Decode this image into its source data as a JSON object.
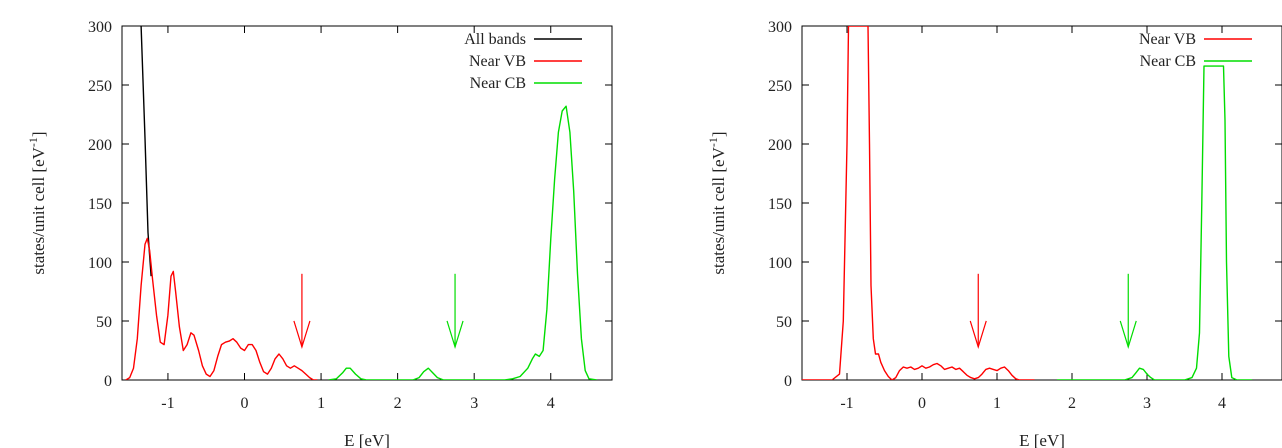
{
  "chart_data": [
    {
      "type": "line",
      "xlabel": "E [eV]",
      "ylabel_main": "states/unit cell [eV",
      "ylabel_sup": "-1",
      "ylabel_end": "]",
      "xlim": [
        -1.6,
        4.8
      ],
      "ylim": [
        0,
        300
      ],
      "xticks": [
        -1,
        0,
        1,
        2,
        3,
        4
      ],
      "yticks": [
        0,
        50,
        100,
        150,
        200,
        250,
        300
      ],
      "grid": false,
      "legend_position": "top-right",
      "series": [
        {
          "name": "All bands",
          "color": "#000000",
          "x": [
            -1.35,
            -1.3,
            -1.26,
            -1.22
          ],
          "y": [
            300,
            205,
            125,
            88
          ]
        },
        {
          "name": "Near VB",
          "color": "#ff0000",
          "x": [
            -1.55,
            -1.5,
            -1.45,
            -1.4,
            -1.35,
            -1.3,
            -1.27,
            -1.24,
            -1.2,
            -1.15,
            -1.1,
            -1.05,
            -1.0,
            -0.96,
            -0.93,
            -0.9,
            -0.85,
            -0.8,
            -0.75,
            -0.7,
            -0.66,
            -0.6,
            -0.55,
            -0.5,
            -0.45,
            -0.4,
            -0.35,
            -0.3,
            -0.25,
            -0.2,
            -0.15,
            -0.1,
            -0.05,
            0.0,
            0.05,
            0.1,
            0.15,
            0.2,
            0.25,
            0.3,
            0.35,
            0.4,
            0.45,
            0.5,
            0.55,
            0.6,
            0.65,
            0.7,
            0.75,
            0.8,
            0.85,
            0.9,
            0.95
          ],
          "y": [
            0,
            2,
            10,
            35,
            80,
            115,
            120,
            110,
            85,
            55,
            32,
            30,
            55,
            88,
            92,
            75,
            45,
            25,
            30,
            40,
            38,
            25,
            12,
            5,
            3,
            8,
            20,
            30,
            32,
            33,
            35,
            32,
            27,
            25,
            30,
            30,
            25,
            15,
            7,
            5,
            10,
            18,
            22,
            18,
            12,
            10,
            12,
            10,
            8,
            5,
            2,
            0,
            0
          ]
        },
        {
          "name": "Near CB",
          "color": "#00dd00",
          "x": [
            1.1,
            1.2,
            1.28,
            1.33,
            1.38,
            1.45,
            1.52,
            1.6,
            2.2,
            2.28,
            2.34,
            2.4,
            2.46,
            2.52,
            2.6,
            3.4,
            3.5,
            3.6,
            3.7,
            3.76,
            3.8,
            3.85,
            3.9,
            3.95,
            4.0,
            4.05,
            4.1,
            4.15,
            4.2,
            4.25,
            4.3,
            4.35,
            4.4,
            4.45,
            4.5,
            4.6
          ],
          "y": [
            0,
            1,
            6,
            10,
            10,
            5,
            1,
            0,
            0,
            2,
            7,
            10,
            6,
            2,
            0,
            0,
            1,
            3,
            10,
            18,
            22,
            20,
            25,
            60,
            120,
            170,
            210,
            228,
            232,
            210,
            160,
            90,
            35,
            8,
            1,
            0
          ]
        }
      ],
      "annotations": [
        {
          "type": "arrow",
          "color": "#ff0000",
          "x": 0.75,
          "y_from": 90,
          "y_to": 28
        },
        {
          "type": "arrow",
          "color": "#00dd00",
          "x": 2.75,
          "y_from": 90,
          "y_to": 28
        }
      ]
    },
    {
      "type": "line",
      "xlabel": "E [eV]",
      "ylabel_main": "states/unit cell [eV",
      "ylabel_sup": "-1",
      "ylabel_end": "]",
      "xlim": [
        -1.6,
        4.8
      ],
      "ylim": [
        0,
        300
      ],
      "xticks": [
        -1,
        0,
        1,
        2,
        3,
        4
      ],
      "yticks": [
        0,
        50,
        100,
        150,
        200,
        250,
        300
      ],
      "grid": false,
      "legend_position": "top-right",
      "series": [
        {
          "name": "Near VB",
          "color": "#ff0000",
          "x": [
            -1.6,
            -1.2,
            -1.1,
            -1.05,
            -1.0,
            -0.98,
            -0.96,
            -0.94,
            -0.92,
            -0.9,
            -0.88,
            -0.86,
            -0.84,
            -0.82,
            -0.8,
            -0.78,
            -0.76,
            -0.74,
            -0.72,
            -0.7,
            -0.68,
            -0.65,
            -0.62,
            -0.58,
            -0.55,
            -0.5,
            -0.45,
            -0.4,
            -0.35,
            -0.3,
            -0.25,
            -0.2,
            -0.15,
            -0.1,
            -0.05,
            0.0,
            0.05,
            0.1,
            0.15,
            0.2,
            0.25,
            0.3,
            0.35,
            0.4,
            0.45,
            0.5,
            0.55,
            0.6,
            0.65,
            0.7,
            0.75,
            0.8,
            0.85,
            0.9,
            0.95,
            1.0,
            1.05,
            1.1,
            1.15,
            1.2,
            1.25,
            1.3,
            1.4,
            1.5
          ],
          "y": [
            0,
            0,
            5,
            50,
            200,
            300,
            300,
            300,
            300,
            300,
            300,
            300,
            300,
            300,
            300,
            300,
            300,
            300,
            300,
            200,
            80,
            35,
            22,
            22,
            15,
            8,
            3,
            0,
            2,
            8,
            11,
            10,
            11,
            9,
            10,
            12,
            10,
            11,
            13,
            14,
            12,
            9,
            10,
            11,
            9,
            10,
            7,
            4,
            2,
            1,
            2,
            5,
            9,
            10,
            9,
            8,
            10,
            11,
            8,
            4,
            1,
            0,
            0,
            0
          ],
          "clip_at": 300
        },
        {
          "name": "Near CB",
          "color": "#00dd00",
          "x": [
            1.8,
            2.5,
            2.7,
            2.8,
            2.85,
            2.9,
            2.95,
            3.0,
            3.05,
            3.1,
            3.2,
            3.5,
            3.6,
            3.66,
            3.7,
            3.73,
            3.76,
            3.8,
            3.85,
            3.9,
            3.95,
            4.0,
            4.02,
            4.04,
            4.06,
            4.09,
            4.13,
            4.2,
            4.4
          ],
          "y": [
            0,
            0,
            0,
            2,
            6,
            10,
            9,
            5,
            2,
            0,
            0,
            0,
            2,
            10,
            40,
            150,
            266,
            266,
            266,
            266,
            266,
            266,
            266,
            220,
            100,
            20,
            2,
            0,
            0
          ],
          "clip_at": 266
        }
      ],
      "annotations": [
        {
          "type": "arrow",
          "color": "#ff0000",
          "x": 0.75,
          "y_from": 90,
          "y_to": 28
        },
        {
          "type": "arrow",
          "color": "#00dd00",
          "x": 2.75,
          "y_from": 90,
          "y_to": 28
        }
      ]
    }
  ]
}
